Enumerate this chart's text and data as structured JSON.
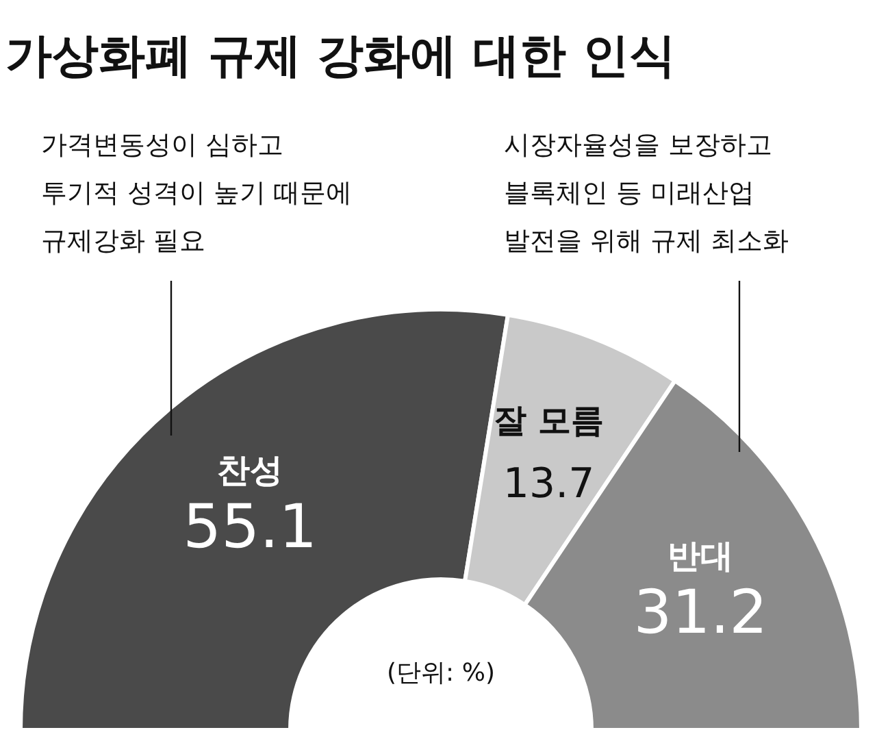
{
  "chart_data": {
    "type": "donut",
    "title": "가상화폐 규제 강화에 대한 인식",
    "categories": [
      "찬성",
      "잘 모름",
      "반대"
    ],
    "values": [
      55.1,
      13.7,
      31.2
    ],
    "colors": [
      "#4a4a4a",
      "#c9c9c9",
      "#8b8b8b"
    ],
    "data_labels": true,
    "annotations": [
      "가격변동성이 심하고\n투기적 성격이 높기 때문에\n규제강화 필요",
      "시장자율성을 보장하고\n블록체인 등 미래산업\n발전을 위해 규제 최소화",
      "(단위: %)"
    ]
  }
}
